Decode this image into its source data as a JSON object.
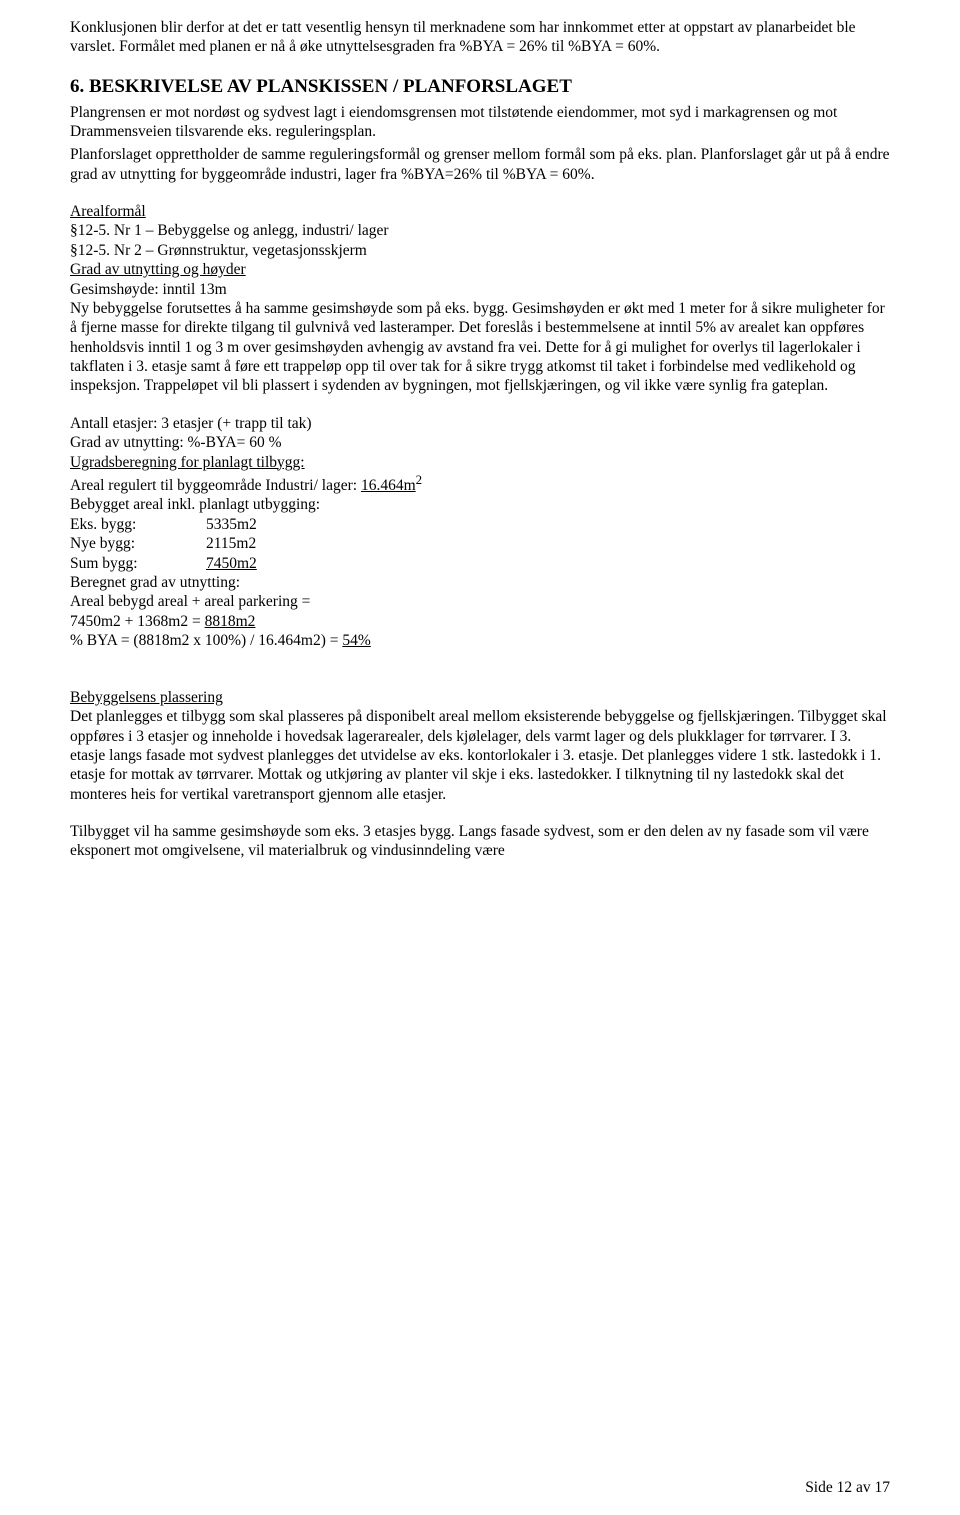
{
  "intro": {
    "p1": "Konklusjonen blir derfor at det er tatt vesentlig hensyn til merknadene som har innkommet etter at oppstart av planarbeidet ble varslet. Formålet med planen er nå å øke utnyttelsesgraden fra %BYA = 26% til %BYA = 60%."
  },
  "section6": {
    "title": "6. BESKRIVELSE AV PLANSKISSEN / PLANFORSLAGET",
    "p1": "Plangrensen er mot nordøst og sydvest lagt i eiendomsgrensen mot tilstøtende eiendommer, mot syd i markagrensen og mot Drammensveien tilsvarende eks. reguleringsplan.",
    "p2": "Planforslaget opprettholder de samme reguleringsformål og grenser mellom formål som på eks. plan. Planforslaget går ut på å endre grad av utnytting for byggeområde industri, lager fra %BYA=26%  til %BYA = 60%.",
    "arealformal": {
      "label": "Arealformål",
      "l1": "§12-5. Nr 1 – Bebyggelse og anlegg, industri/ lager",
      "l2": "§12-5. Nr 2 – Grønnstruktur, vegetasjonsskjerm"
    },
    "grad": {
      "label": "Grad av utnytting og høyder",
      "l1": "Gesimshøyde: inntil 13m",
      "p1": "Ny bebyggelse forutsettes å ha samme gesimshøyde som på eks. bygg. Gesimshøyden er økt med 1 meter for å sikre muligheter for å fjerne masse for direkte tilgang til gulvnivå ved lasteramper. Det foreslås i bestemmelsene at inntil 5% av arealet kan oppføres henholdsvis inntil 1 og 3 m over gesimshøyden avhengig av avstand fra vei. Dette for å gi mulighet for overlys til lagerlokaler i takflaten i 3. etasje samt å føre ett trappeløp opp til over tak for å sikre trygg atkomst til taket i forbindelse med vedlikehold og inspeksjon. Trappeløpet vil bli plassert i sydenden av bygningen, mot fjellskjæringen, og vil ikke være synlig fra gateplan."
    },
    "etasjer": {
      "l1": "Antall etasjer: 3 etasjer (+ trapp til tak)",
      "l2": "Grad av utnytting: %-BYA= 60 %"
    },
    "ugrads": {
      "label": "Ugradsberegning for planlagt tilbygg:",
      "l1_pre": "Areal regulert til byggeområde Industri/ lager: ",
      "l1_u": "16.464m",
      "l1_sup": "2",
      "l2": "Bebygget areal inkl. planlagt utbygging:",
      "rows": {
        "r1l": "Eks. bygg:",
        "r1v": "5335m2",
        "r2l": "Nye bygg:",
        "r2v": "2115m2",
        "r3l": "Sum bygg:",
        "r3v": "7450m2"
      }
    },
    "beregnet": {
      "l1": "Beregnet grad av utnytting:",
      "l2": "Areal bebygd areal + areal parkering =",
      "l3_pre": "7450m2 + 1368m2 = ",
      "l3_u": "8818m2"
    },
    "bya": {
      "pre": "% BYA = (8818m2 x 100%) / 16.464m2) = ",
      "u": "54%"
    },
    "plassering": {
      "label": "Bebyggelsens plassering",
      "p1": "Det planlegges et tilbygg som skal plasseres på disponibelt areal mellom eksisterende bebyggelse og fjellskjæringen. Tilbygget skal oppføres i 3 etasjer og inneholde i hovedsak lagerarealer, dels kjølelager, dels varmt lager og dels plukklager for tørrvarer. I 3. etasje langs fasade mot sydvest planlegges det utvidelse av eks. kontorlokaler i 3. etasje. Det planlegges videre 1 stk. lastedokk i 1. etasje for mottak av tørrvarer. Mottak og utkjøring av planter vil skje i eks. lastedokker. I tilknytning til ny lastedokk skal det monteres heis for vertikal varetransport gjennom alle etasjer.",
      "p2": "Tilbygget vil ha samme gesimshøyde som eks. 3 etasjes bygg. Langs fasade sydvest, som er den delen av ny fasade som vil være eksponert mot omgivelsene, vil materialbruk og vindusinndeling være"
    }
  },
  "footer": "Side 12 av 17"
}
